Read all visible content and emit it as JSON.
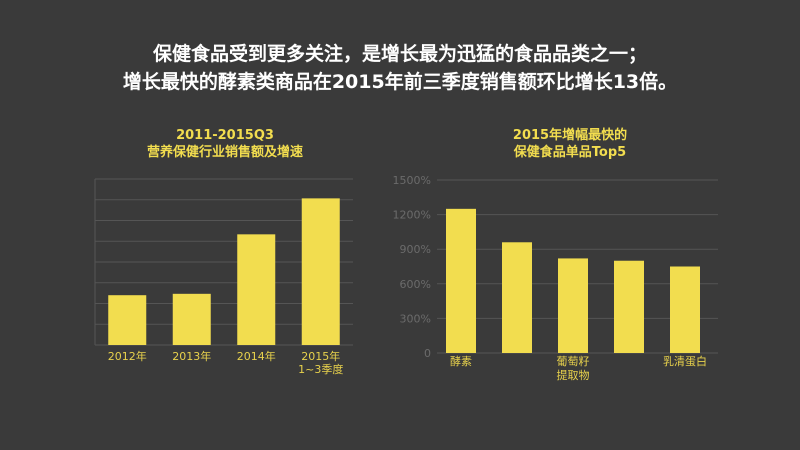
{
  "headline": {
    "line1": "保健食品受到更多关注，是增长最为迅猛的食品品类之一；",
    "line2": "增长最快的酵素类商品在2015年前三季度销售额环比增长13倍。"
  },
  "colors": {
    "background": "#3a3a3a",
    "bar": "#f2dd4f",
    "title": "#f2dd4f",
    "grid": "#555555",
    "ytick": "#6b6b6b"
  },
  "chart_data": [
    {
      "type": "bar",
      "title_line1": "2011-2015Q3",
      "title_line2": "营养保健行业销售额及增速",
      "categories": [
        [
          "2012年"
        ],
        [
          "2013年"
        ],
        [
          "2014年"
        ],
        [
          "2015年",
          "1~3季度"
        ]
      ],
      "values": [
        36,
        37,
        80,
        106
      ],
      "ylim": [
        0,
        120
      ],
      "grid": true,
      "ytick_labels_shown": false
    },
    {
      "type": "bar",
      "title_line1": "2015年增幅最快的",
      "title_line2": "保健食品单品Top5",
      "categories": [
        [
          "酵素"
        ],
        [
          ""
        ],
        [
          "葡萄籽",
          "提取物"
        ],
        [
          ""
        ],
        [
          "乳清蛋白"
        ]
      ],
      "values": [
        1250,
        960,
        820,
        800,
        750
      ],
      "ylim": [
        0,
        1500
      ],
      "yticks": [
        0,
        300,
        600,
        900,
        1200,
        1500
      ],
      "ytick_labels": [
        "0",
        "300%",
        "600%",
        "900%",
        "1200%",
        "1500%"
      ],
      "grid": true
    }
  ]
}
